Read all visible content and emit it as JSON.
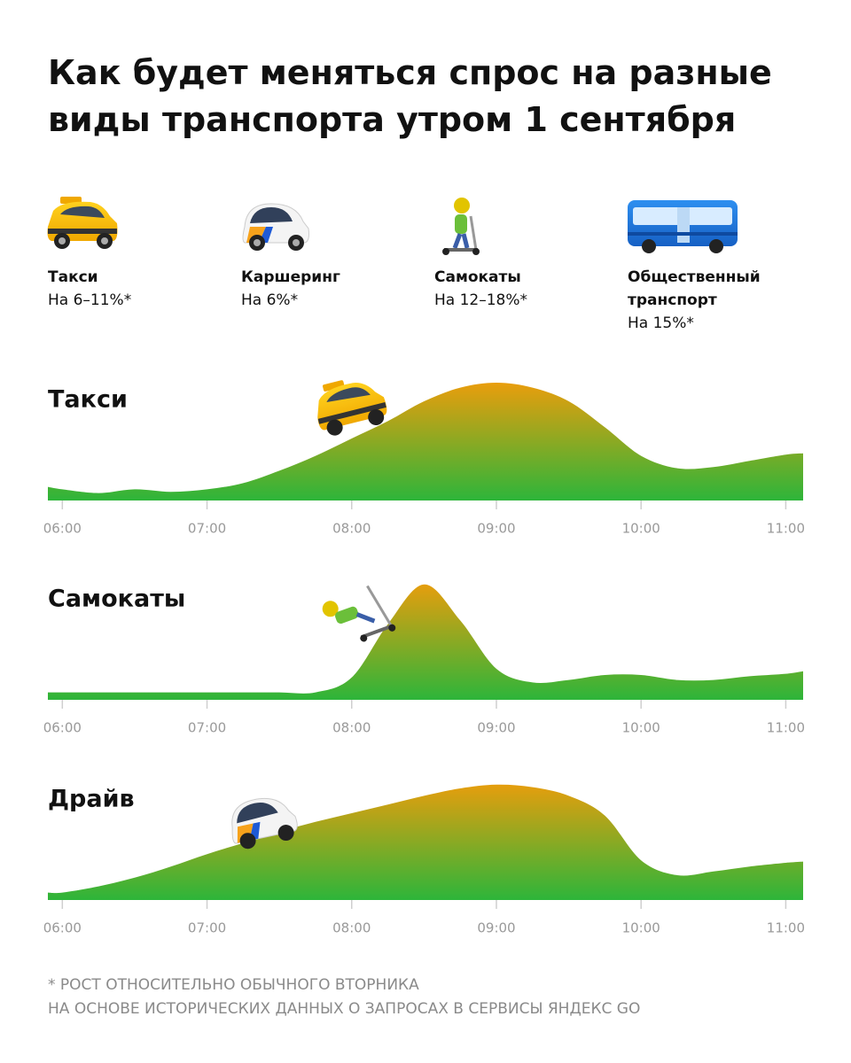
{
  "title": "Как будет меняться спрос на разные виды транспорта утром 1 сентября",
  "legend": [
    {
      "name": "Такси",
      "change": "На 6–11%*"
    },
    {
      "name": "Каршеринг",
      "change": "На 6%*"
    },
    {
      "name": "Самокаты",
      "change": "На 12–18%*"
    },
    {
      "name": "Общественный транспорт",
      "change": "На 15%*"
    }
  ],
  "chart_data": [
    {
      "type": "area",
      "title": "Такси",
      "gradient": [
        "#2db53a",
        "#f39c0a"
      ],
      "x": [
        5.9,
        6,
        6.25,
        6.5,
        6.75,
        7,
        7.25,
        7.5,
        7.75,
        8,
        8.25,
        8.5,
        8.75,
        9,
        9.25,
        9.5,
        9.75,
        10,
        10.25,
        10.5,
        10.75,
        11,
        11.12
      ],
      "values": [
        11,
        9,
        6,
        9,
        7,
        9,
        14,
        24,
        36,
        50,
        64,
        80,
        91,
        95,
        91,
        80,
        59,
        36,
        26,
        27,
        32,
        37,
        38
      ],
      "xlim": [
        5.9,
        11.12
      ],
      "ylim": [
        0,
        100
      ],
      "xticks": [
        {
          "value": 6,
          "label": "06:00"
        },
        {
          "value": 7,
          "label": "07:00"
        },
        {
          "value": 8,
          "label": "08:00"
        },
        {
          "value": 9,
          "label": "09:00"
        },
        {
          "value": 10,
          "label": "10:00"
        },
        {
          "value": 11,
          "label": "11:00"
        }
      ]
    },
    {
      "type": "area",
      "title": "Самокаты",
      "gradient": [
        "#2db53a",
        "#f39c0a"
      ],
      "x": [
        5.9,
        6,
        6.25,
        6.5,
        6.75,
        7,
        7.25,
        7.5,
        7.75,
        8,
        8.25,
        8.5,
        8.75,
        9,
        9.25,
        9.5,
        9.75,
        10,
        10.25,
        10.5,
        10.75,
        11,
        11.12
      ],
      "values": [
        6,
        6,
        6,
        6,
        6,
        6,
        6,
        6,
        6,
        18,
        61,
        93,
        64,
        25,
        14,
        16,
        20,
        20,
        16,
        16,
        19,
        21,
        23
      ],
      "xlim": [
        5.9,
        11.12
      ],
      "ylim": [
        0,
        100
      ],
      "xticks": [
        {
          "value": 6,
          "label": "06:00"
        },
        {
          "value": 7,
          "label": "07:00"
        },
        {
          "value": 8,
          "label": "08:00"
        },
        {
          "value": 9,
          "label": "09:00"
        },
        {
          "value": 10,
          "label": "10:00"
        },
        {
          "value": 11,
          "label": "11:00"
        }
      ]
    },
    {
      "type": "area",
      "title": "Драйв",
      "gradient": [
        "#2db53a",
        "#f39c0a"
      ],
      "x": [
        5.9,
        6,
        6.25,
        6.5,
        6.75,
        7,
        7.25,
        7.5,
        7.75,
        8,
        8.25,
        8.5,
        8.75,
        9,
        9.25,
        9.5,
        9.75,
        10,
        10.25,
        10.5,
        10.75,
        11,
        11.12
      ],
      "values": [
        6,
        6,
        11,
        18,
        27,
        37,
        46,
        55,
        63,
        70,
        77,
        84,
        90,
        93,
        91,
        84,
        68,
        32,
        20,
        23,
        27,
        30,
        31
      ],
      "xlim": [
        5.9,
        11.12
      ],
      "ylim": [
        0,
        100
      ],
      "xticks": [
        {
          "value": 6,
          "label": "06:00"
        },
        {
          "value": 7,
          "label": "07:00"
        },
        {
          "value": 8,
          "label": "08:00"
        },
        {
          "value": 9,
          "label": "09:00"
        },
        {
          "value": 10,
          "label": "10:00"
        },
        {
          "value": 11,
          "label": "11:00"
        }
      ]
    }
  ],
  "footnote": [
    "* Рост относительно обычного вторника",
    "на основе исторических данных о запросах в сервисы Яндекс Go"
  ]
}
